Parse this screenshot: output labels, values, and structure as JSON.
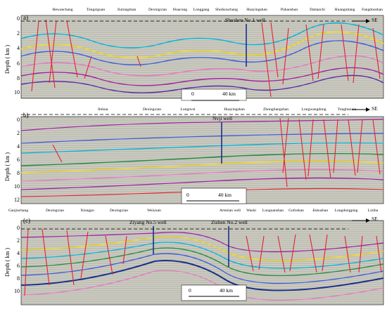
{
  "panels": [
    {
      "label": "a)",
      "direction": "SE",
      "axis_label": "Depth ( km )",
      "ticks": [
        "0",
        "2",
        "4",
        "6",
        "8",
        "10"
      ],
      "well": "Shushen No.1 well",
      "scale": {
        "left": "0",
        "right": "40 km"
      },
      "locations": [
        "Hewanchang",
        "Tongziguan",
        "Jiulongshan",
        "Dexingxian",
        "Huacong",
        "Longgang",
        "Shuikouchang",
        "Huayingshan",
        "Puhaoshan",
        "Datianchi",
        "Huangnitang",
        "Fangdoushan"
      ]
    },
    {
      "label": "b)",
      "direction": "SE",
      "axis_label": "Depth ( km )",
      "ticks": [
        "0",
        "2",
        "4",
        "6",
        "8",
        "10",
        "12"
      ],
      "well": "Nvji well",
      "scale": {
        "left": "0",
        "right": "40 km"
      },
      "locations": [
        "Jinhua",
        "Dexingxian",
        "Longnvsi",
        "Huayingshan",
        "Zhongliangshan",
        "Longwangdong",
        "Tonghuoxia"
      ]
    },
    {
      "label": "(c)",
      "direction": "SE",
      "axis_label": "Depth ( km )",
      "ticks": [
        "0",
        "2",
        "4",
        "6",
        "8",
        "10"
      ],
      "well_1": "Ziyang No.5 well",
      "well_2": "Zishen No.2 well",
      "scale": {
        "left": "0",
        "right": "40 km"
      },
      "locations": [
        "Gaojiachang",
        "Dexingxian",
        "Xiongpo",
        "Dexingxian",
        "Weiyuan",
        "Artesian well",
        "Washi",
        "Luoguanshan",
        "Gufoshan",
        "Jinkushan",
        "Longdongping",
        "Liziba"
      ]
    }
  ],
  "colors": {
    "fault": "#e8202a",
    "well": "#1a2f8a",
    "background": "#c9c9c0"
  }
}
